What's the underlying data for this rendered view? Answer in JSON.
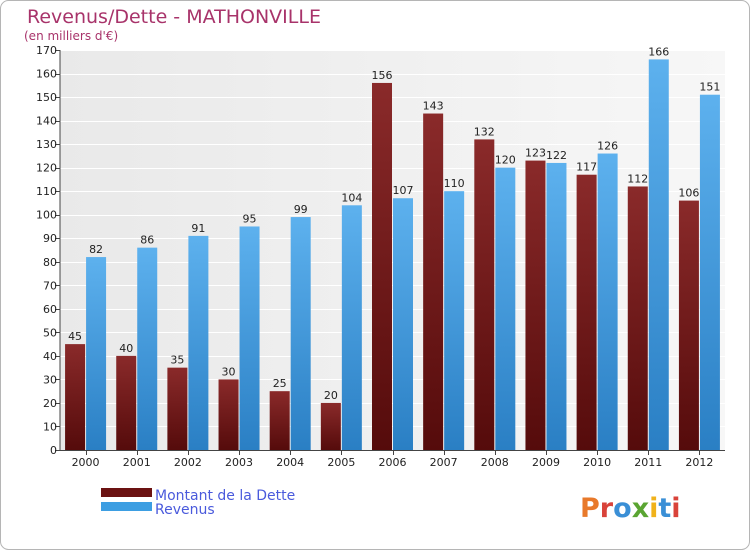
{
  "chart_data": {
    "type": "bar",
    "title": "Revenus/Dette - MATHONVILLE",
    "subtitle": "(en milliers d'€)",
    "categories": [
      "2000",
      "2001",
      "2002",
      "2003",
      "2004",
      "2005",
      "2006",
      "2007",
      "2008",
      "2009",
      "2010",
      "2011",
      "2012"
    ],
    "series": [
      {
        "name": "Montant de la Dette",
        "color": "#7a1e1e",
        "values": [
          45,
          40,
          35,
          30,
          25,
          20,
          156,
          143,
          132,
          123,
          117,
          112,
          106
        ]
      },
      {
        "name": "Revenus",
        "color": "#3d9ee2",
        "values": [
          82,
          86,
          91,
          95,
          99,
          104,
          107,
          110,
          120,
          122,
          126,
          166,
          151
        ]
      }
    ],
    "ylim": [
      0,
      170
    ],
    "yticks": [
      0,
      10,
      20,
      30,
      40,
      50,
      60,
      70,
      80,
      90,
      100,
      110,
      120,
      130,
      140,
      150,
      160,
      170
    ],
    "grid": true,
    "legend_position": "bottom-left"
  },
  "logo_text": "Proxiti"
}
